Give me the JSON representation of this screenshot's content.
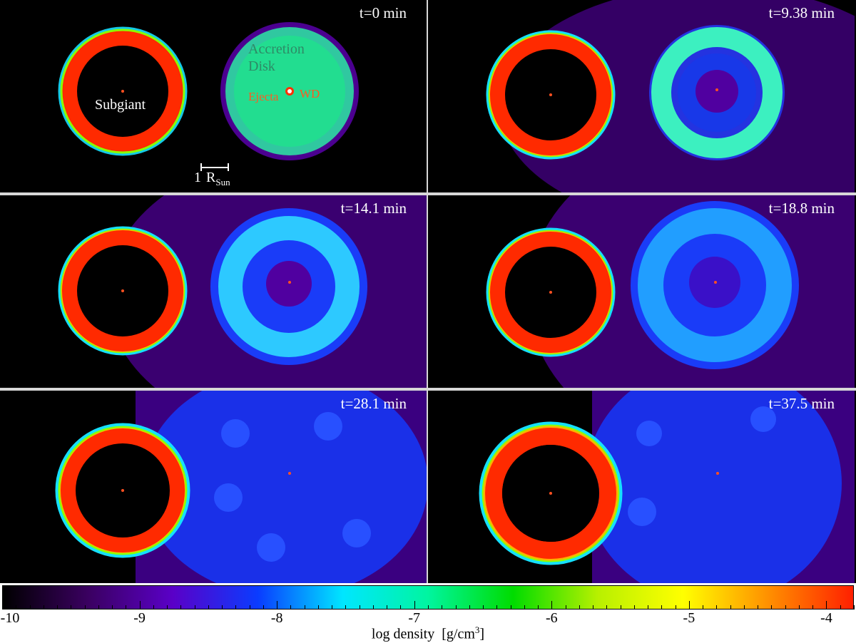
{
  "panels": [
    {
      "time": "t=0 min",
      "disk": "filled"
    },
    {
      "time": "t=9.38 min",
      "disk": "ring"
    },
    {
      "time": "t=14.1 min",
      "disk": "ring"
    },
    {
      "time": "t=18.8 min",
      "disk": "ring"
    },
    {
      "time": "t=28.1 min",
      "disk": "diffuse"
    },
    {
      "time": "t=37.5 min",
      "disk": "diffuse"
    }
  ],
  "annotations": {
    "subgiant": "Subgiant",
    "accretion": "Accretion",
    "disk": "Disk",
    "ejecta": "Ejecta",
    "wd": "WD",
    "scale_number": "1",
    "scale_unit": "R",
    "scale_sub": "Sun"
  },
  "colorbar": {
    "ticks": [
      "-10",
      "-9",
      "-8",
      "-7",
      "-6",
      "-5",
      "-4"
    ],
    "min": -10,
    "max": -3.8,
    "label": "log density",
    "unit_prefix": "[g/cm",
    "unit_exp": "3",
    "unit_suffix": "]",
    "colors": [
      "#000000",
      "#3a0060",
      "#5a00c8",
      "#0a3cff",
      "#00e6ff",
      "#00f5a0",
      "#00dc00",
      "#b8f000",
      "#ffff00",
      "#ff9000",
      "#ff2000"
    ]
  }
}
